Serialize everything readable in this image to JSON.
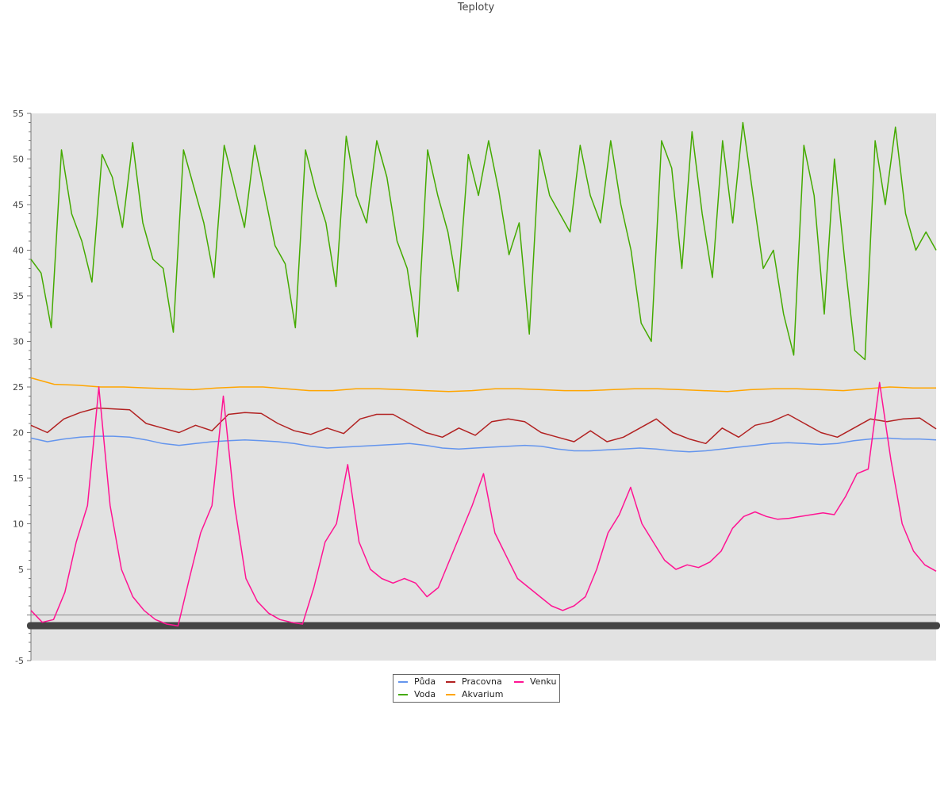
{
  "chart_data": {
    "type": "line",
    "title": "Teploty",
    "xlabel": "",
    "ylabel": "",
    "ylim": [
      -5,
      55
    ],
    "yticks": [
      -5,
      5,
      10,
      15,
      20,
      25,
      30,
      35,
      40,
      45,
      50,
      55
    ],
    "grid": false,
    "legend_position": "bottom-center",
    "background_color": "#e2e2e2",
    "series": [
      {
        "name": "Půda",
        "color": "#6495ed",
        "values": [
          19.4,
          19.0,
          19.3,
          19.5,
          19.6,
          19.6,
          19.5,
          19.2,
          18.8,
          18.6,
          18.8,
          19.0,
          19.1,
          19.2,
          19.1,
          19.0,
          18.8,
          18.5,
          18.3,
          18.4,
          18.5,
          18.6,
          18.7,
          18.8,
          18.6,
          18.3,
          18.2,
          18.3,
          18.4,
          18.5,
          18.6,
          18.5,
          18.2,
          18.0,
          18.0,
          18.1,
          18.2,
          18.3,
          18.2,
          18.0,
          17.9,
          18.0,
          18.2,
          18.4,
          18.6,
          18.8,
          18.9,
          18.8,
          18.7,
          18.8,
          19.1,
          19.3,
          19.4,
          19.3,
          19.3,
          19.2
        ]
      },
      {
        "name": "Pracovna",
        "color": "#b22222",
        "values": [
          20.8,
          20.0,
          21.5,
          22.2,
          22.7,
          22.6,
          22.5,
          21.0,
          20.5,
          20.0,
          20.8,
          20.2,
          22.0,
          22.2,
          22.1,
          21.0,
          20.2,
          19.8,
          20.5,
          19.9,
          21.5,
          22.0,
          22.0,
          21.0,
          20.0,
          19.5,
          20.5,
          19.7,
          21.2,
          21.5,
          21.2,
          20.0,
          19.5,
          19.0,
          20.2,
          19.0,
          19.5,
          20.5,
          21.5,
          20.0,
          19.3,
          18.8,
          20.5,
          19.5,
          20.8,
          21.2,
          22.0,
          21.0,
          20.0,
          19.5,
          20.5,
          21.5,
          21.2,
          21.5,
          21.6,
          20.4
        ]
      },
      {
        "name": "Voda",
        "color": "#44aa00",
        "values": [
          39.0,
          37.5,
          31.5,
          51.0,
          44.0,
          41.0,
          36.5,
          50.5,
          48.0,
          42.5,
          51.8,
          43.0,
          39.0,
          38.0,
          31.0,
          51.0,
          47.0,
          43.0,
          37.0,
          51.5,
          47.0,
          42.5,
          51.5,
          46.0,
          40.5,
          38.5,
          31.5,
          51.0,
          46.5,
          43.0,
          36.0,
          52.5,
          46.0,
          43.0,
          52.0,
          48.0,
          41.0,
          38.0,
          30.5,
          51.0,
          46.0,
          42.0,
          35.5,
          50.5,
          46.0,
          52.0,
          46.5,
          39.5,
          43.0,
          30.8,
          51.0,
          46.0,
          44.0,
          42.0,
          51.5,
          46.0,
          43.0,
          52.0,
          45.0,
          40.0,
          32.0,
          30.0,
          52.0,
          49.0,
          38.0,
          53.0,
          44.0,
          37.0,
          52.0,
          43.0,
          54.0,
          46.0,
          38.0,
          40.0,
          33.0,
          28.5,
          51.5,
          46.0,
          33.0,
          50.0,
          39.0,
          29.0,
          28.0,
          52.0,
          45.0,
          53.5,
          44.0,
          40.0,
          42.0,
          40.0
        ]
      },
      {
        "name": "Akvarium",
        "color": "#ffa500",
        "values": [
          26.0,
          25.3,
          25.2,
          25.0,
          25.0,
          24.9,
          24.8,
          24.7,
          24.9,
          25.0,
          25.0,
          24.8,
          24.6,
          24.6,
          24.8,
          24.8,
          24.7,
          24.6,
          24.5,
          24.6,
          24.8,
          24.8,
          24.7,
          24.6,
          24.6,
          24.7,
          24.8,
          24.8,
          24.7,
          24.6,
          24.5,
          24.7,
          24.8,
          24.8,
          24.7,
          24.6,
          24.8,
          25.0,
          24.9,
          24.9
        ]
      },
      {
        "name": "Venku",
        "color": "#ff1493",
        "values": [
          0.5,
          -0.8,
          -0.5,
          2.5,
          8.0,
          12.0,
          25.0,
          12.0,
          5.0,
          2.0,
          0.5,
          -0.5,
          -1.0,
          -1.2,
          4.0,
          9.0,
          12.0,
          24.0,
          12.0,
          4.0,
          1.5,
          0.2,
          -0.5,
          -0.8,
          -1.0,
          3.0,
          8.0,
          10.0,
          16.5,
          8.0,
          5.0,
          4.0,
          3.5,
          4.0,
          3.5,
          2.0,
          3.0,
          6.0,
          9.0,
          12.0,
          15.5,
          9.0,
          6.5,
          4.0,
          3.0,
          2.0,
          1.0,
          0.5,
          1.0,
          2.0,
          5.0,
          9.0,
          11.0,
          14.0,
          10.0,
          8.0,
          6.0,
          5.0,
          5.5,
          5.2,
          5.8,
          7.0,
          9.5,
          10.8,
          11.3,
          10.8,
          10.5,
          10.6,
          10.8,
          11.0,
          11.2,
          11.0,
          13.0,
          15.5,
          16.0,
          25.5,
          17.0,
          10.0,
          7.0,
          5.5,
          4.8
        ]
      }
    ]
  }
}
